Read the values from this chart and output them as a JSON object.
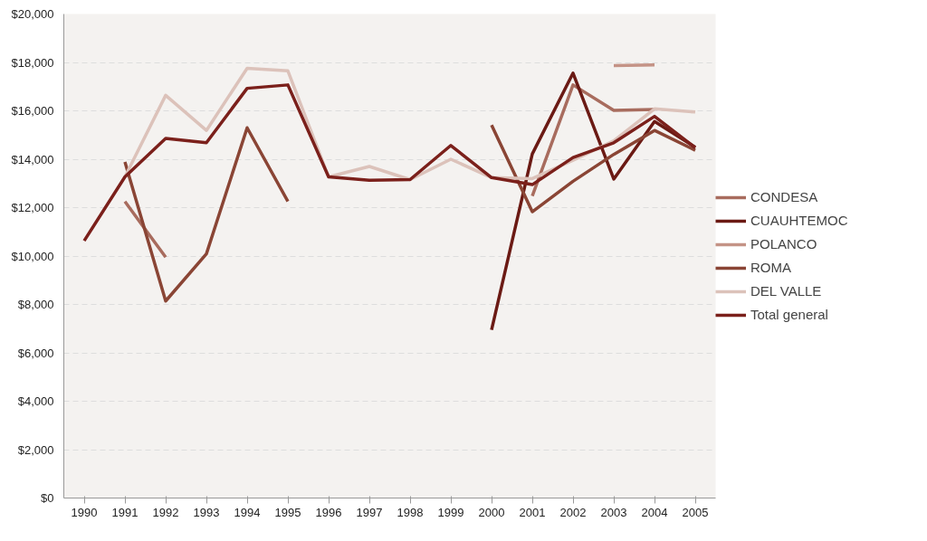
{
  "chart_data": {
    "type": "line",
    "categories": [
      "1990",
      "1991",
      "1992",
      "1993",
      "1994",
      "1995",
      "1996",
      "1997",
      "1998",
      "1999",
      "2000",
      "2001",
      "2002",
      "2003",
      "2004",
      "2005"
    ],
    "series": [
      {
        "name": "CONDESA",
        "color": "#a86c5e",
        "values": [
          null,
          12250,
          9950,
          null,
          null,
          null,
          null,
          null,
          null,
          null,
          null,
          12480,
          17070,
          16020,
          16060,
          null
        ]
      },
      {
        "name": "CUAUHTEMOC",
        "color": "#6b1a14",
        "values": [
          null,
          null,
          null,
          null,
          null,
          null,
          null,
          null,
          null,
          null,
          6950,
          14220,
          17560,
          13180,
          15560,
          14500
        ]
      },
      {
        "name": "POLANCO",
        "color": "#c49386",
        "values": [
          null,
          null,
          null,
          null,
          null,
          null,
          null,
          null,
          null,
          null,
          null,
          null,
          null,
          17870,
          17900,
          null
        ]
      },
      {
        "name": "ROMA",
        "color": "#8a4535",
        "values": [
          null,
          13890,
          8140,
          10090,
          15300,
          12260,
          null,
          null,
          null,
          null,
          15410,
          11830,
          13090,
          14200,
          15190,
          14370
        ]
      },
      {
        "name": "DEL VALLE",
        "color": "#dcc2ba",
        "values": [
          null,
          13270,
          16640,
          15190,
          17760,
          17650,
          13270,
          13700,
          13160,
          14000,
          13240,
          13200,
          13960,
          14760,
          16080,
          15950
        ]
      },
      {
        "name": "Total general",
        "color": "#7b201b",
        "values": [
          10630,
          13270,
          14860,
          14680,
          16930,
          17070,
          13270,
          13130,
          13160,
          14570,
          13240,
          12950,
          14070,
          14680,
          15770,
          14470
        ]
      }
    ],
    "ylim": [
      0,
      20000
    ],
    "yticks": [
      {
        "value": 0,
        "label": "$0"
      },
      {
        "value": 2000,
        "label": "$2,000"
      },
      {
        "value": 4000,
        "label": "$4,000"
      },
      {
        "value": 6000,
        "label": "$6,000"
      },
      {
        "value": 8000,
        "label": "$8,000"
      },
      {
        "value": 10000,
        "label": "$10,000"
      },
      {
        "value": 12000,
        "label": "$12,000"
      },
      {
        "value": 14000,
        "label": "$14,000"
      },
      {
        "value": 16000,
        "label": "$16,000"
      },
      {
        "value": 18000,
        "label": "$18,000"
      },
      {
        "value": 20000,
        "label": "$20,000"
      }
    ],
    "grid": "y",
    "legend": "right",
    "line_style": "solid",
    "marker": "none"
  }
}
